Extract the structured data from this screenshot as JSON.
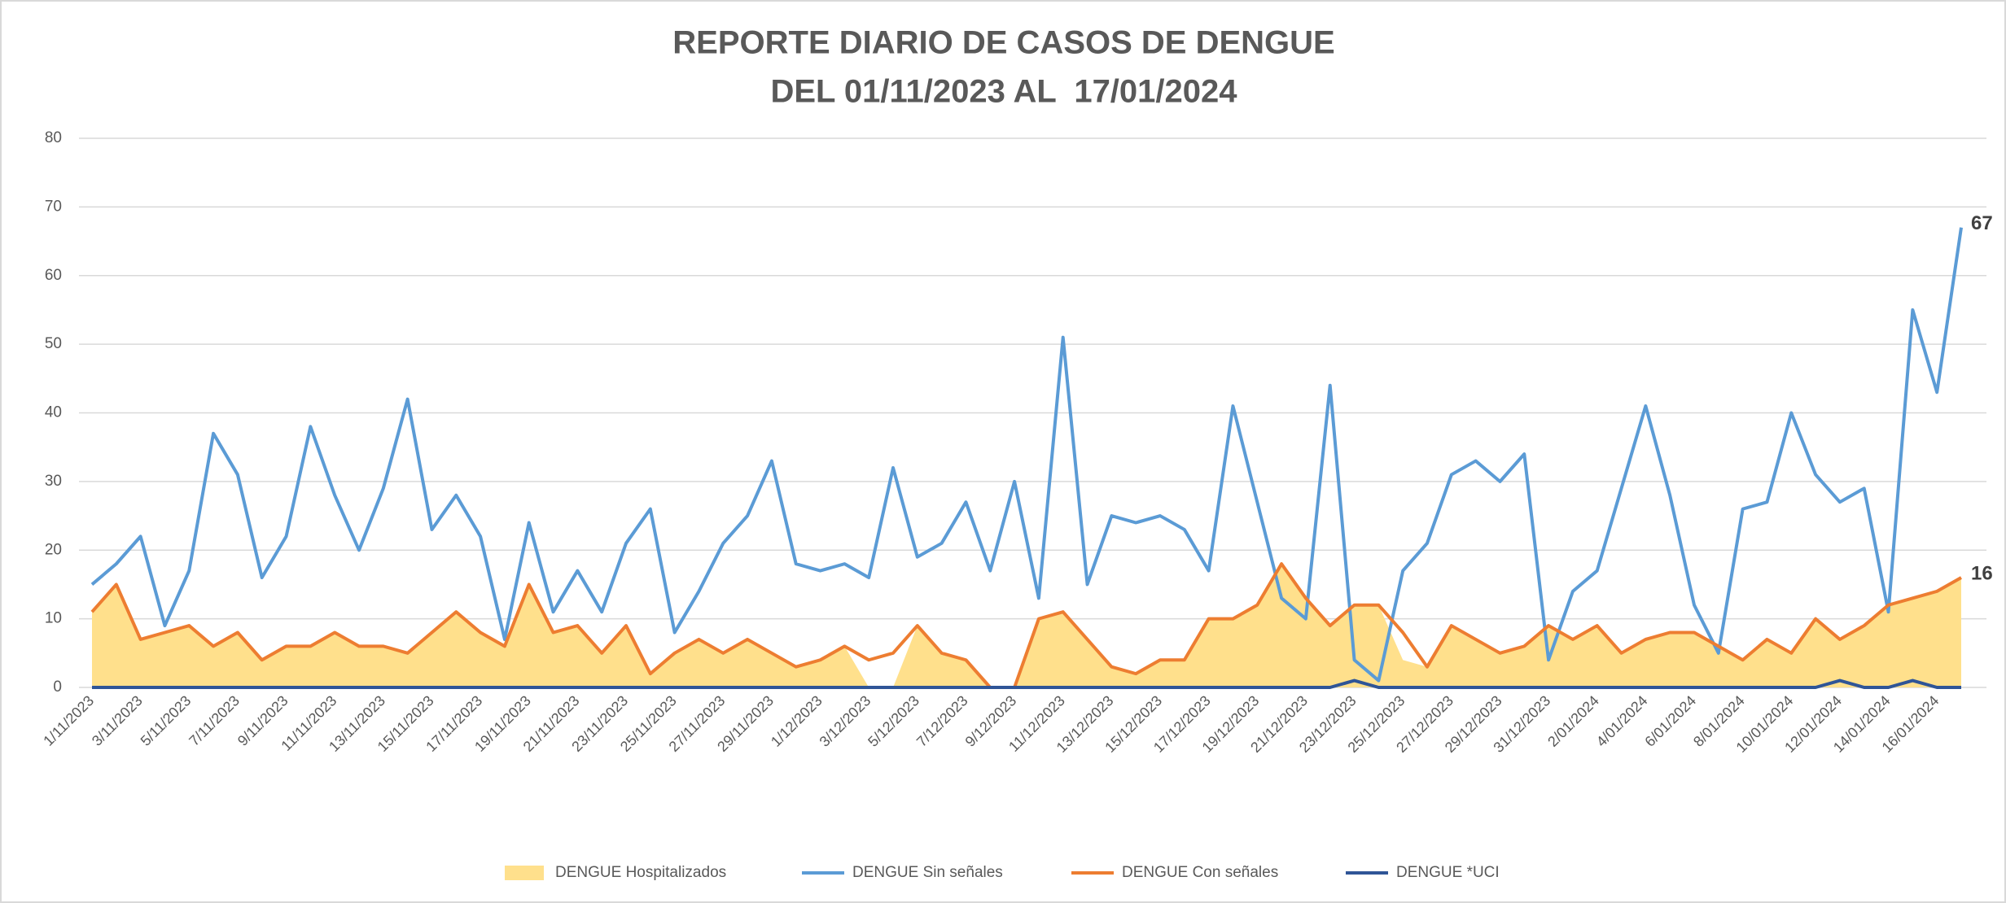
{
  "chart_data": {
    "type": "line",
    "title": "REPORTE DIARIO DE CASOS DE DENGUE",
    "subtitle": "DEL 01/11/2023 AL  17/01/2024",
    "categories": [
      "1/11/2023",
      null,
      "3/11/2023",
      null,
      "5/11/2023",
      null,
      "7/11/2023",
      null,
      "9/11/2023",
      null,
      "11/11/2023",
      null,
      "13/11/2023",
      null,
      "15/11/2023",
      null,
      "17/11/2023",
      null,
      "19/11/2023",
      null,
      "21/11/2023",
      null,
      "23/11/2023",
      null,
      "25/11/2023",
      null,
      "27/11/2023",
      null,
      "29/11/2023",
      null,
      "1/12/2023",
      null,
      "3/12/2023",
      null,
      "5/12/2023",
      null,
      "7/12/2023",
      null,
      "9/12/2023",
      null,
      "11/12/2023",
      null,
      "13/12/2023",
      null,
      "15/12/2023",
      null,
      "17/12/2023",
      null,
      "19/12/2023",
      null,
      "21/12/2023",
      null,
      "23/12/2023",
      null,
      "25/12/2023",
      null,
      "27/12/2023",
      null,
      "29/12/2023",
      null,
      "31/12/2023",
      null,
      "2/01/2024",
      null,
      "4/01/2024",
      null,
      "6/01/2024",
      null,
      "8/01/2024",
      null,
      "10/01/2024",
      null,
      "12/01/2024",
      null,
      "14/01/2024",
      null,
      "16/01/2024",
      null
    ],
    "series": [
      {
        "name": "DENGUE Hospitalizados",
        "style": "area",
        "color": "#FFE08C",
        "values": [
          11,
          15,
          7,
          8,
          9,
          6,
          8,
          4,
          6,
          6,
          8,
          6,
          6,
          5,
          8,
          11,
          8,
          6,
          15,
          8,
          9,
          5,
          9,
          2,
          5,
          7,
          5,
          7,
          5,
          3,
          4,
          6,
          0,
          0,
          9,
          5,
          4,
          0,
          0,
          10,
          11,
          7,
          3,
          2,
          4,
          4,
          10,
          10,
          12,
          18,
          13,
          9,
          12,
          12,
          4,
          3,
          9,
          7,
          5,
          6,
          9,
          7,
          9,
          5,
          7,
          8,
          8,
          6,
          4,
          7,
          5,
          10,
          7,
          9,
          12,
          13,
          14,
          16
        ]
      },
      {
        "name": "DENGUE Sin señales",
        "style": "line",
        "color": "#5B9BD5",
        "label_last": true,
        "values": [
          15,
          18,
          22,
          9,
          17,
          37,
          31,
          16,
          22,
          38,
          28,
          20,
          29,
          42,
          23,
          28,
          22,
          7,
          24,
          11,
          17,
          11,
          21,
          26,
          8,
          14,
          21,
          25,
          33,
          18,
          17,
          18,
          16,
          32,
          19,
          21,
          27,
          17,
          30,
          13,
          51,
          15,
          25,
          24,
          25,
          23,
          17,
          41,
          27,
          13,
          10,
          44,
          4,
          1,
          17,
          21,
          31,
          33,
          30,
          34,
          4,
          14,
          17,
          29,
          41,
          28,
          12,
          5,
          26,
          27,
          40,
          31,
          27,
          29,
          11,
          55,
          43,
          67
        ]
      },
      {
        "name": "DENGUE Con señales",
        "style": "line",
        "color": "#ED7D31",
        "label_last": true,
        "values": [
          11,
          15,
          7,
          8,
          9,
          6,
          8,
          4,
          6,
          6,
          8,
          6,
          6,
          5,
          8,
          11,
          8,
          6,
          15,
          8,
          9,
          5,
          9,
          2,
          5,
          7,
          5,
          7,
          5,
          3,
          4,
          6,
          4,
          5,
          9,
          5,
          4,
          0,
          0,
          10,
          11,
          7,
          3,
          2,
          4,
          4,
          10,
          10,
          12,
          18,
          13,
          9,
          12,
          12,
          8,
          3,
          9,
          7,
          5,
          6,
          9,
          7,
          9,
          5,
          7,
          8,
          8,
          6,
          4,
          7,
          5,
          10,
          7,
          9,
          12,
          13,
          14,
          16
        ]
      },
      {
        "name": "DENGUE *UCI",
        "style": "line",
        "color": "#2F5597",
        "values": [
          0,
          0,
          0,
          0,
          0,
          0,
          0,
          0,
          0,
          0,
          0,
          0,
          0,
          0,
          0,
          0,
          0,
          0,
          0,
          0,
          0,
          0,
          0,
          0,
          0,
          0,
          0,
          0,
          0,
          0,
          0,
          0,
          0,
          0,
          0,
          0,
          0,
          0,
          0,
          0,
          0,
          0,
          0,
          0,
          0,
          0,
          0,
          0,
          0,
          0,
          0,
          0,
          1,
          0,
          0,
          0,
          0,
          0,
          0,
          0,
          0,
          0,
          0,
          0,
          0,
          0,
          0,
          0,
          0,
          0,
          0,
          0,
          1,
          0,
          0,
          1,
          0,
          0
        ]
      }
    ],
    "ylim": [
      0,
      80
    ],
    "yticks": [
      0,
      10,
      20,
      30,
      40,
      50,
      60,
      70,
      80
    ],
    "grid": true,
    "legend": "bottom"
  }
}
